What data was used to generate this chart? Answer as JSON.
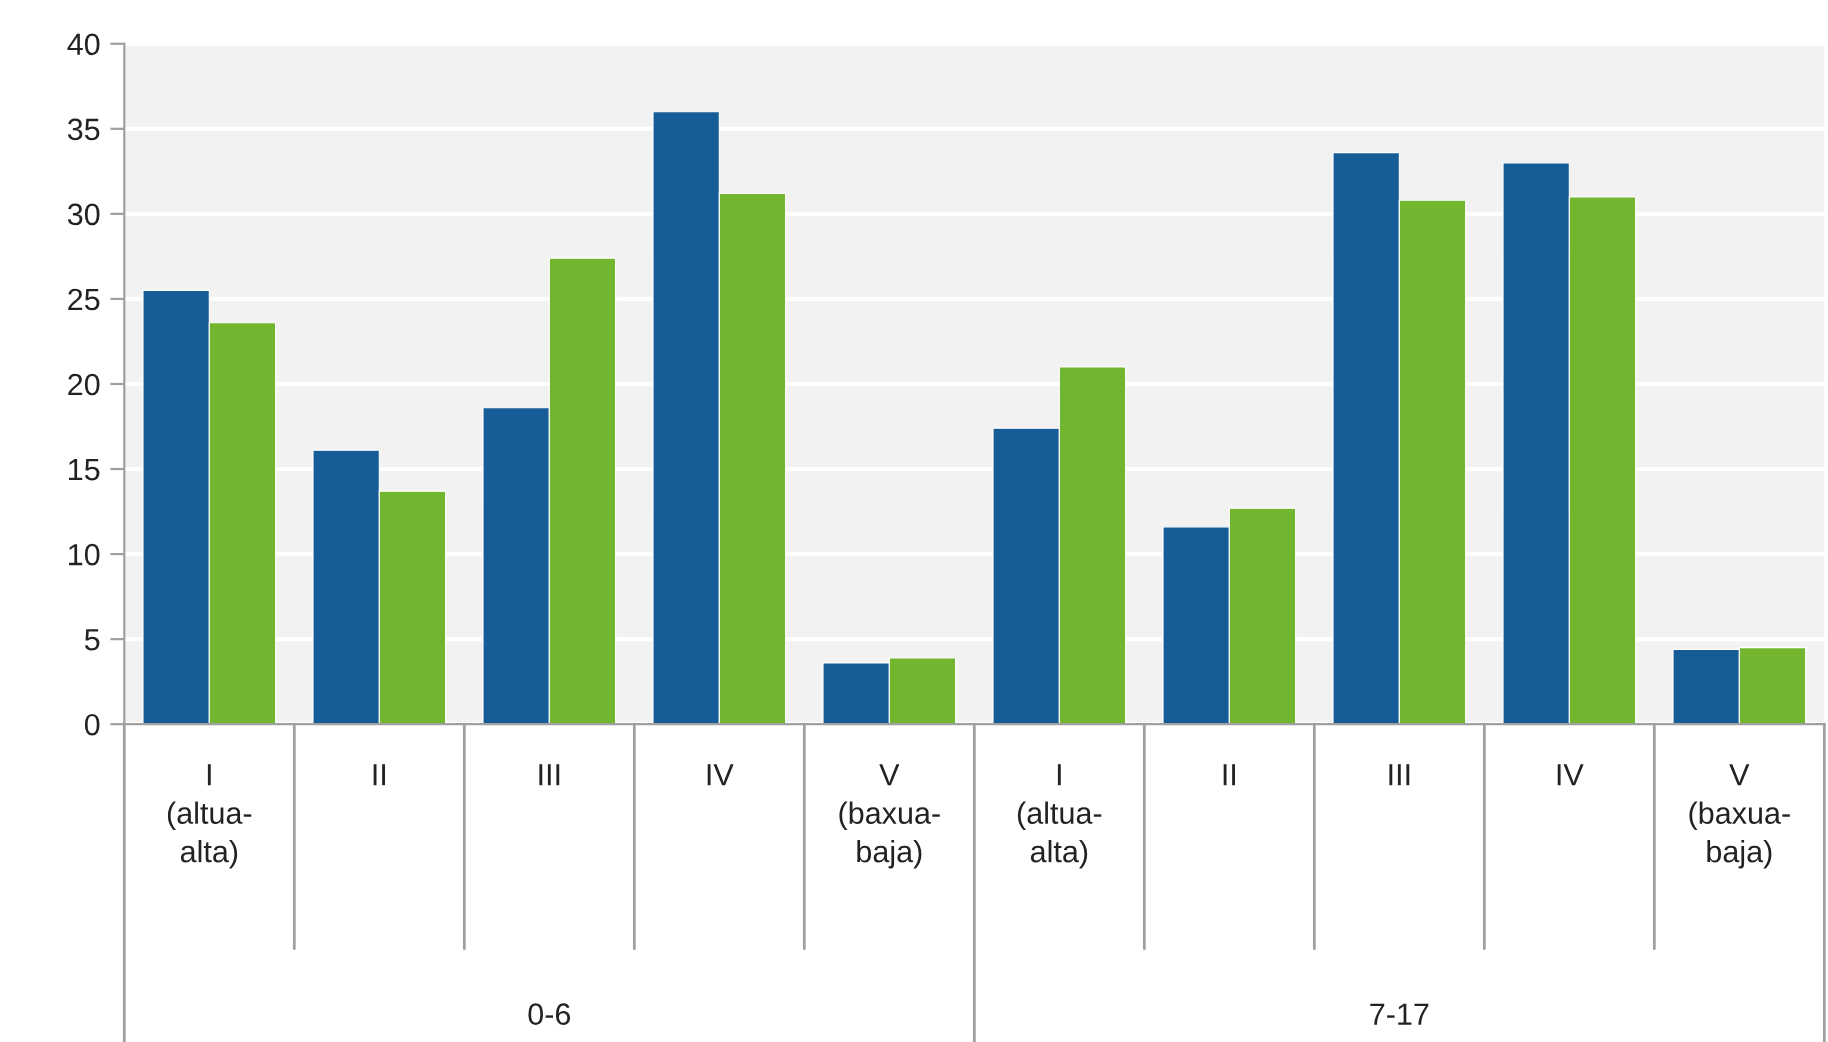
{
  "chart_data": {
    "type": "bar",
    "categories": [
      "I\n(altua-\nalta)",
      "II",
      "III",
      "IV",
      "V\n(baxua-\nbaja)",
      "I\n(altua-\nalta)",
      "II",
      "III",
      "IV",
      "V\n(baxua-\nbaja)"
    ],
    "series": [
      {
        "color": "#165c96",
        "values": [
          25.5,
          16.1,
          18.6,
          36.0,
          3.6,
          17.4,
          11.6,
          33.6,
          33.0,
          4.4
        ]
      },
      {
        "color": "#72b52f",
        "values": [
          23.6,
          13.7,
          27.4,
          31.2,
          3.9,
          21.0,
          12.7,
          30.8,
          31.0,
          4.5
        ]
      }
    ],
    "annotations": [
      "0-6",
      "7-17"
    ],
    "ylim": [
      0,
      40
    ],
    "yticks": [
      0,
      5,
      10,
      15,
      20,
      25,
      30,
      35,
      40
    ],
    "grid": "y",
    "legend": false
  }
}
